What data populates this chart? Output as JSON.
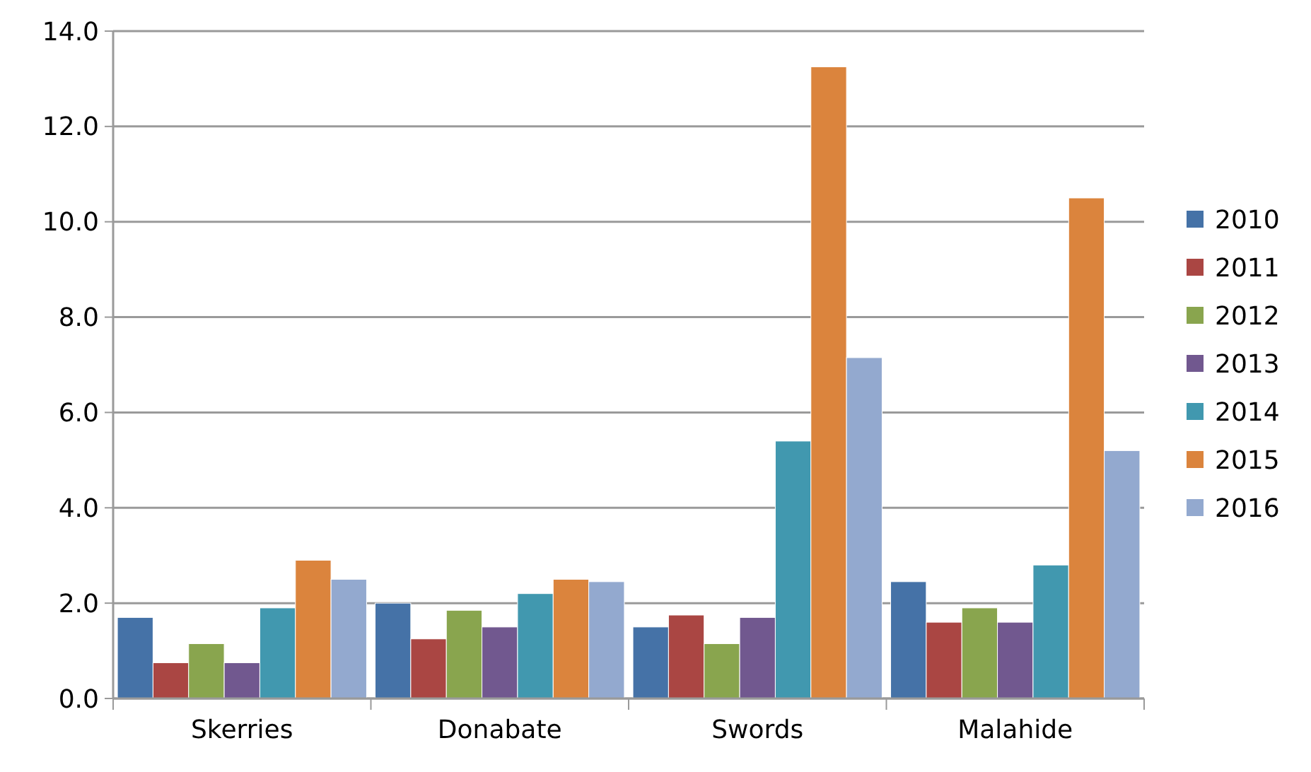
{
  "chart_data": {
    "type": "bar",
    "categories": [
      "Skerries",
      "Donabate",
      "Swords",
      "Malahide"
    ],
    "series": [
      {
        "name": "2010",
        "color": "#4572a7",
        "values": [
          1.7,
          2.0,
          1.5,
          2.45
        ]
      },
      {
        "name": "2011",
        "color": "#aa4643",
        "values": [
          0.75,
          1.25,
          1.75,
          1.6
        ]
      },
      {
        "name": "2012",
        "color": "#89a54e",
        "values": [
          1.15,
          1.85,
          1.15,
          1.9
        ]
      },
      {
        "name": "2013",
        "color": "#71588f",
        "values": [
          0.75,
          1.5,
          1.7,
          1.6
        ]
      },
      {
        "name": "2014",
        "color": "#4198af",
        "values": [
          1.9,
          2.2,
          5.4,
          2.8
        ]
      },
      {
        "name": "2015",
        "color": "#db843d",
        "values": [
          2.9,
          2.5,
          13.25,
          10.5
        ]
      },
      {
        "name": "2016",
        "color": "#93a9cf",
        "values": [
          2.5,
          2.45,
          7.15,
          5.2
        ]
      }
    ],
    "ylim": [
      0,
      14
    ],
    "yticks": [
      {
        "value": 0,
        "label": "0.0"
      },
      {
        "value": 2,
        "label": "2.0"
      },
      {
        "value": 4,
        "label": "4.0"
      },
      {
        "value": 6,
        "label": "6.0"
      },
      {
        "value": 8,
        "label": "8.0"
      },
      {
        "value": 10,
        "label": "10.0"
      },
      {
        "value": 12,
        "label": "12.0"
      },
      {
        "value": 14,
        "label": "14.0"
      }
    ],
    "grid": "y",
    "legend": "right"
  }
}
